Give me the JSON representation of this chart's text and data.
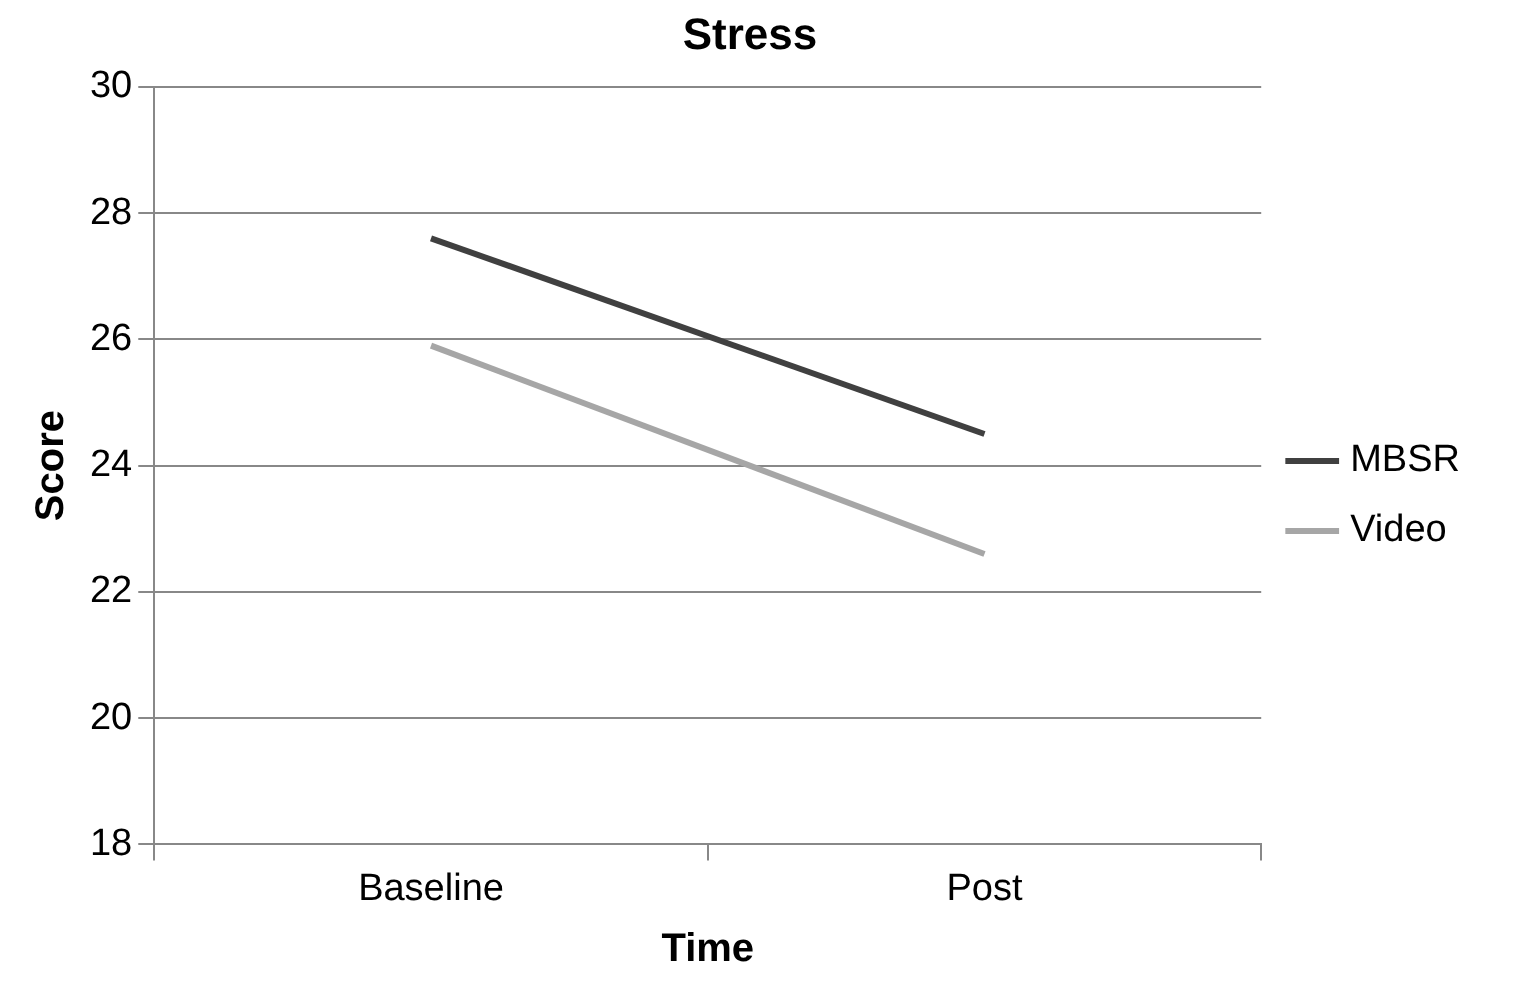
{
  "chart_data": {
    "type": "line",
    "title": "Stress",
    "xlabel": "Time",
    "ylabel": "Score",
    "categories": [
      "Baseline",
      "Post"
    ],
    "series": [
      {
        "name": "MBSR",
        "color": "#404040",
        "values": [
          27.6,
          24.5
        ]
      },
      {
        "name": "Video",
        "color": "#a6a6a6",
        "values": [
          25.9,
          22.6
        ]
      }
    ],
    "ylim": [
      18,
      30
    ],
    "yticks": [
      18,
      20,
      22,
      24,
      26,
      28,
      30
    ],
    "grid": "y",
    "legend": "right",
    "marker": "none",
    "line_style": "solid"
  }
}
